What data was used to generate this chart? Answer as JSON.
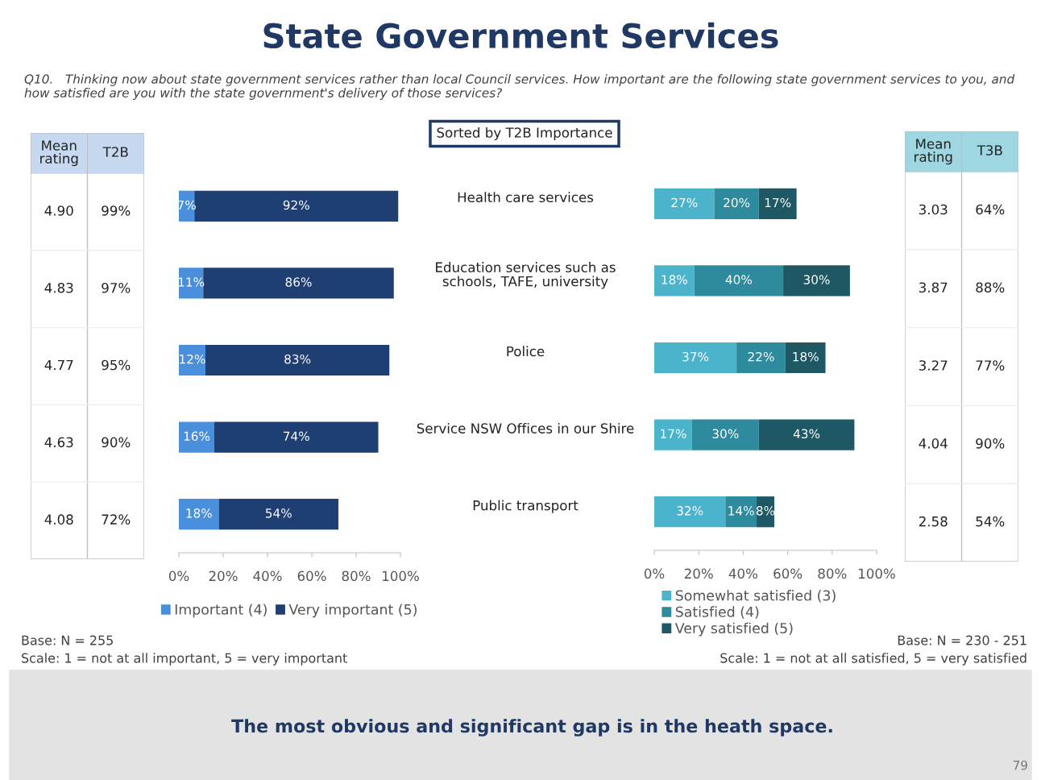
{
  "chart_data": [
    {
      "type": "other",
      "title": "State Government Services",
      "subtitle": "Q10.   Thinking now about state government services rather than local Council services. How important are the following state government services to you, and how satisfied are you with the state government's delivery of those services?",
      "annotations": [
        "Sorted by T2B Importance",
        "The most obvious and significant gap is in the heath space.",
        "79"
      ]
    },
    {
      "type": "other",
      "annotations": [
        "Mean rating",
        "T2B",
        "4.90",
        "99%",
        "4.83",
        "97%",
        "4.77",
        "95%",
        "4.63",
        "90%",
        "4.08",
        "72%"
      ]
    },
    {
      "type": "bar",
      "orientation": "horizontal",
      "stacked": true,
      "categories": [
        "Health care services",
        "Education services such as schools, TAFE, university",
        "Police",
        "Service NSW Offices in our Shire",
        "Public transport"
      ],
      "series": [
        {
          "name": "Important (4)",
          "color": "#4a8fdc",
          "values": [
            7,
            11,
            12,
            16,
            18
          ],
          "value_labels": [
            "7%",
            "11%",
            "12%",
            "16%",
            "18%"
          ]
        },
        {
          "name": "Very important (5)",
          "color": "#1f3f73",
          "values": [
            92,
            86,
            83,
            74,
            54
          ],
          "value_labels": [
            "92%",
            "86%",
            "83%",
            "74%",
            "54%"
          ]
        }
      ],
      "xlim": [
        0,
        100
      ],
      "xticks": [
        {
          "value": 0,
          "label": "0%"
        },
        {
          "value": 20,
          "label": "20%"
        },
        {
          "value": 40,
          "label": "40%"
        },
        {
          "value": 60,
          "label": "60%"
        },
        {
          "value": 80,
          "label": "80%"
        },
        {
          "value": 100,
          "label": "100%"
        }
      ],
      "legend": "bottom",
      "annotations": [
        "Base: N = 255",
        "Scale: 1 = not at all important, 5 = very important"
      ]
    },
    {
      "type": "bar",
      "orientation": "horizontal",
      "stacked": true,
      "categories": [
        null,
        null,
        null,
        null,
        null
      ],
      "series": [
        {
          "name": "Somewhat satisfied (3)",
          "color": "#4bb3cb",
          "values": [
            27,
            18,
            37,
            17,
            32
          ],
          "value_labels": [
            "27%",
            "18%",
            "37%",
            "17%",
            "32%"
          ]
        },
        {
          "name": "Satisfied (4)",
          "color": "#2e8a9d",
          "values": [
            20,
            40,
            22,
            30,
            14
          ],
          "value_labels": [
            "20%",
            "40%",
            "22%",
            "30%",
            "14%"
          ]
        },
        {
          "name": "Very satisfied (5)",
          "color": "#1d5864",
          "values": [
            17,
            30,
            18,
            43,
            8
          ],
          "value_labels": [
            "17%",
            "30%",
            "18%",
            "43%",
            "8%"
          ]
        }
      ],
      "xlim": [
        0,
        100
      ],
      "xticks": [
        {
          "value": 0,
          "label": "0%"
        },
        {
          "value": 20,
          "label": "20%"
        },
        {
          "value": 40,
          "label": "40%"
        },
        {
          "value": 60,
          "label": "60%"
        },
        {
          "value": 80,
          "label": "80%"
        },
        {
          "value": 100,
          "label": "100%"
        }
      ],
      "legend": "bottom",
      "annotations": [
        "Base: N = 230 - 251",
        "Scale: 1 = not at all satisfied, 5 = very satisfied"
      ]
    },
    {
      "type": "other",
      "annotations": [
        "Mean rating",
        "T3B",
        "3.03",
        "64%",
        "3.87",
        "88%",
        "3.27",
        "77%",
        "4.04",
        "90%",
        "2.58",
        "54%"
      ]
    }
  ]
}
